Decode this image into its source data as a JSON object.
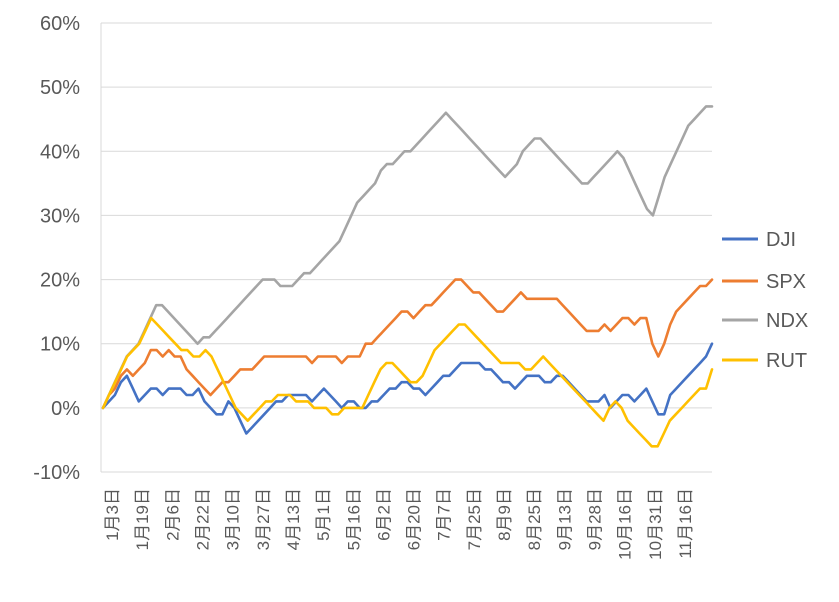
{
  "chart_data": {
    "type": "line",
    "title": "",
    "xlabel": "",
    "ylabel": "",
    "ylim": [
      -10,
      60
    ],
    "y_unit": "%",
    "grid": "horizontal",
    "legend_position": "right",
    "y_ticks": [
      "-10%",
      "0%",
      "10%",
      "20%",
      "30%",
      "40%",
      "50%",
      "60%"
    ],
    "x_ticks": [
      "1月3日",
      "1月19日",
      "2月6日",
      "2月22日",
      "3月10日",
      "3月27日",
      "4月13日",
      "5月1日",
      "5月16日",
      "6月2日",
      "6月20日",
      "7月7日",
      "7月25日",
      "8月9日",
      "8月25日",
      "9月13日",
      "9月28日",
      "10月16日",
      "10月31日",
      "11月16日"
    ],
    "series": [
      {
        "name": "DJI",
        "color": "#4472C4",
        "values": [
          0,
          1,
          2,
          4,
          5,
          3,
          1,
          2,
          3,
          3,
          2,
          3,
          3,
          3,
          2,
          2,
          3,
          1,
          0,
          -1,
          -1,
          1,
          0,
          -2,
          -4,
          -3,
          -2,
          -1,
          0,
          1,
          1,
          2,
          2,
          2,
          2,
          1,
          2,
          3,
          2,
          1,
          0,
          1,
          1,
          0,
          0,
          1,
          1,
          2,
          3,
          3,
          4,
          4,
          3,
          3,
          2,
          3,
          4,
          5,
          5,
          6,
          7,
          7,
          7,
          7,
          6,
          6,
          5,
          4,
          4,
          3,
          4,
          5,
          5,
          5,
          4,
          4,
          5,
          5,
          4,
          3,
          2,
          1,
          1,
          1,
          2,
          0,
          1,
          2,
          2,
          1,
          2,
          3,
          1,
          -1,
          -1,
          2,
          3,
          4,
          5,
          6,
          7,
          8,
          10
        ]
      },
      {
        "name": "SPX",
        "color": "#ED7D31",
        "values": [
          0,
          2,
          3,
          5,
          6,
          5,
          6,
          7,
          9,
          9,
          8,
          9,
          8,
          8,
          6,
          5,
          4,
          3,
          2,
          3,
          4,
          4,
          5,
          6,
          6,
          6,
          7,
          8,
          8,
          8,
          8,
          8,
          8,
          8,
          8,
          7,
          8,
          8,
          8,
          8,
          7,
          8,
          8,
          8,
          10,
          10,
          11,
          12,
          13,
          14,
          15,
          15,
          14,
          15,
          16,
          16,
          17,
          18,
          19,
          20,
          20,
          19,
          18,
          18,
          17,
          16,
          15,
          15,
          16,
          17,
          18,
          17,
          17,
          17,
          17,
          17,
          17,
          16,
          15,
          14,
          13,
          12,
          12,
          12,
          13,
          12,
          13,
          14,
          14,
          13,
          14,
          14,
          10,
          8,
          10,
          13,
          15,
          16,
          17,
          18,
          19,
          19,
          20
        ]
      },
      {
        "name": "NDX",
        "color": "#A5A5A5",
        "values": [
          0,
          2,
          4,
          6,
          8,
          9,
          10,
          12,
          14,
          16,
          16,
          15,
          14,
          13,
          12,
          11,
          10,
          11,
          11,
          12,
          13,
          14,
          15,
          16,
          17,
          18,
          19,
          20,
          20,
          20,
          19,
          19,
          19,
          20,
          21,
          21,
          22,
          23,
          24,
          25,
          26,
          28,
          30,
          32,
          33,
          34,
          35,
          37,
          38,
          38,
          39,
          40,
          40,
          41,
          42,
          43,
          44,
          45,
          46,
          45,
          44,
          43,
          42,
          41,
          40,
          39,
          38,
          37,
          36,
          37,
          38,
          40,
          41,
          42,
          42,
          41,
          40,
          39,
          38,
          37,
          36,
          35,
          35,
          36,
          37,
          38,
          39,
          40,
          39,
          37,
          35,
          33,
          31,
          30,
          33,
          36,
          38,
          40,
          42,
          44,
          45,
          46,
          47,
          47
        ]
      },
      {
        "name": "RUT",
        "color": "#FFC000",
        "values": [
          0,
          2,
          4,
          6,
          8,
          9,
          10,
          12,
          14,
          13,
          12,
          11,
          10,
          9,
          9,
          8,
          8,
          9,
          8,
          6,
          4,
          2,
          0,
          -1,
          -2,
          -1,
          0,
          1,
          1,
          2,
          2,
          2,
          1,
          1,
          1,
          0,
          0,
          0,
          -1,
          -1,
          0,
          0,
          0,
          0,
          2,
          4,
          6,
          7,
          7,
          6,
          5,
          4,
          4,
          5,
          7,
          9,
          10,
          11,
          12,
          13,
          13,
          12,
          11,
          10,
          9,
          8,
          7,
          7,
          7,
          7,
          6,
          6,
          7,
          8,
          7,
          6,
          5,
          4,
          3,
          2,
          1,
          0,
          -1,
          -2,
          0,
          1,
          0,
          -2,
          -3,
          -4,
          -5,
          -6,
          -6,
          -4,
          -2,
          -1,
          0,
          1,
          2,
          3,
          3,
          6
        ]
      }
    ]
  }
}
